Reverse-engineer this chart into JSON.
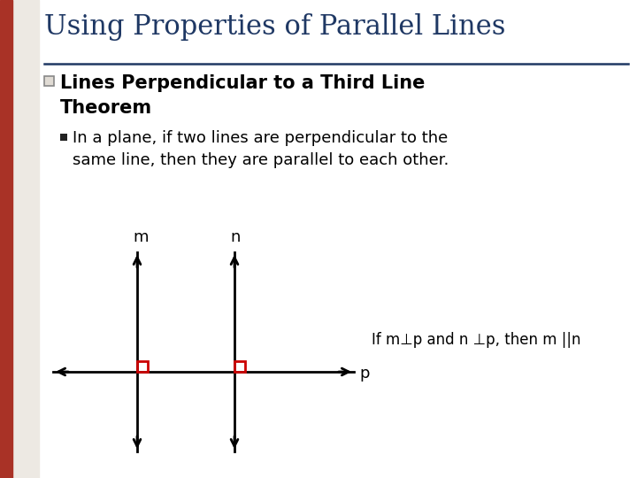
{
  "title": "Using Properties of Parallel Lines",
  "title_color": "#1F3864",
  "title_fontsize": 22,
  "bg_color": "#FFFFFF",
  "separator_color": "#1F3864",
  "bullet1_text": "Lines Perpendicular to a Third Line\nTheorem",
  "bullet2_line1": "In a plane, if two lines are perpendicular to the",
  "bullet2_line2": "same line, then they are parallel to each other.",
  "theorem_text": "If m⊥p and n ⊥p, then m ||n",
  "line_m_label": "m",
  "line_n_label": "n",
  "line_p_label": "p",
  "red_square_color": "#CC0000",
  "arrow_color": "#000000",
  "left_red_color": "#A93226",
  "left_gray_color": "#EDE9E3",
  "bullet1_fontsize": 15,
  "bullet2_fontsize": 13,
  "theorem_fontsize": 12,
  "diagram_label_fontsize": 13
}
